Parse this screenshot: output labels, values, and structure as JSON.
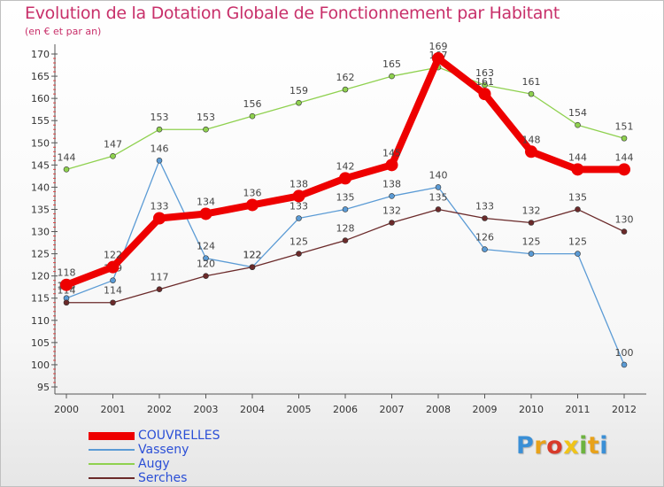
{
  "header": {
    "title": "Evolution de la Dotation Globale de Fonctionnement par Habitant",
    "subtitle": "(en € et par an)"
  },
  "logo": {
    "text": "Proxiti",
    "colors": [
      "#3a8fd6",
      "#e8a21a",
      "#d83a2a",
      "#f0c419",
      "#6db33f",
      "#e8a21a",
      "#3a8fd6"
    ]
  },
  "chart_data": {
    "type": "line",
    "categories": [
      "2000",
      "2001",
      "2002",
      "2003",
      "2004",
      "2005",
      "2006",
      "2007",
      "2008",
      "2009",
      "2010",
      "2011",
      "2012"
    ],
    "ylim": [
      95,
      170
    ],
    "yticks": [
      95,
      100,
      105,
      110,
      115,
      120,
      125,
      130,
      135,
      140,
      145,
      150,
      155,
      160,
      165,
      170
    ],
    "grid": false,
    "legend_placement": "bottom-left",
    "series": [
      {
        "name": "Augy",
        "color": "#8fd14f",
        "values": [
          144,
          147,
          153,
          153,
          156,
          159,
          162,
          165,
          167,
          163,
          161,
          154,
          151
        ],
        "emphasis": false
      },
      {
        "name": "Vasseny",
        "color": "#5b9bd5",
        "values": [
          115,
          119,
          146,
          124,
          122,
          133,
          135,
          138,
          140,
          126,
          125,
          125,
          100
        ],
        "emphasis": false
      },
      {
        "name": "Serches",
        "color": "#6b2a2a",
        "values": [
          114,
          114,
          117,
          120,
          122,
          125,
          128,
          132,
          135,
          133,
          132,
          135,
          130
        ],
        "emphasis": false
      },
      {
        "name": "COUVRELLES",
        "color": "#ee0000",
        "values": [
          118,
          122,
          133,
          134,
          136,
          138,
          142,
          145,
          169,
          161,
          148,
          144,
          144
        ],
        "emphasis": true
      }
    ],
    "legend_order": [
      "COUVRELLES",
      "Vasseny",
      "Augy",
      "Serches"
    ]
  }
}
